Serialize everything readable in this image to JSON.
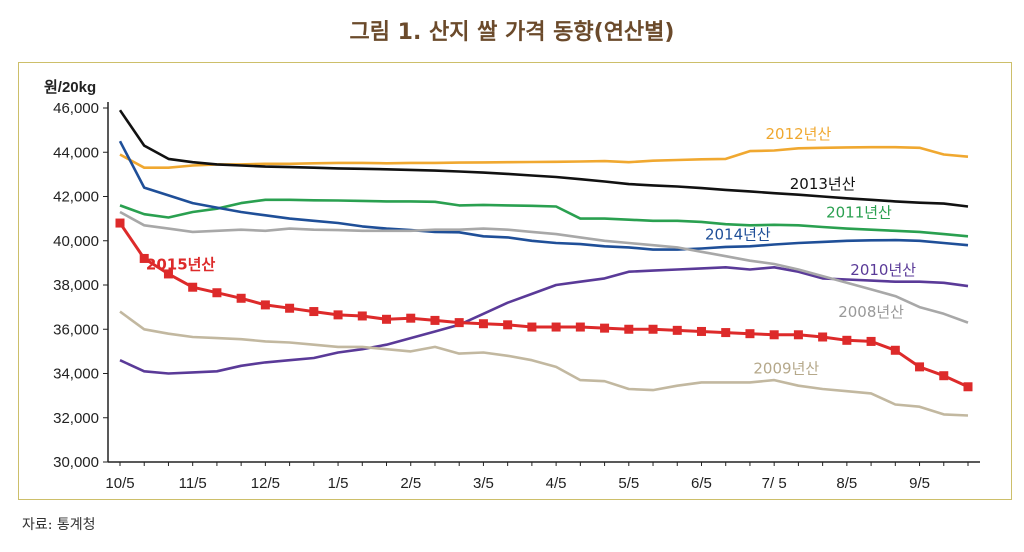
{
  "title": "그림 1. 산지 쌀 가격 동향(연산별)",
  "source": "자료: 통계청",
  "chart_data": {
    "type": "line",
    "title": "그림 1. 산지 쌀 가격 동향(연산별)",
    "ylabel": "원/20kg",
    "ylim": [
      30000,
      46000
    ],
    "yticks": [
      30000,
      32000,
      34000,
      36000,
      38000,
      40000,
      42000,
      44000,
      46000
    ],
    "ytick_labels": [
      "30,000",
      "32,000",
      "34,000",
      "36,000",
      "38,000",
      "40,000",
      "42,000",
      "44,000",
      "46,000"
    ],
    "categories": [
      "10/5",
      "11/5",
      "12/5",
      "1/5",
      "2/5",
      "3/5",
      "4/5",
      "5/5",
      "6/5",
      "7/ 5",
      "8/5",
      "9/5"
    ],
    "x_label_positions": [
      0,
      3,
      6,
      9,
      12,
      15,
      18,
      21,
      24,
      27,
      30,
      33
    ],
    "x": [
      0,
      1,
      2,
      3,
      4,
      5,
      6,
      7,
      8,
      9,
      10,
      11,
      12,
      13,
      14,
      15,
      16,
      17,
      18,
      19,
      20,
      21,
      22,
      23,
      24,
      25,
      26,
      27,
      28,
      29,
      30,
      31,
      32,
      33,
      34,
      35
    ],
    "grid": false,
    "series": [
      {
        "name": "2012년산",
        "color": "#f0a830",
        "marker": "none",
        "values": [
          43900,
          43300,
          43300,
          43400,
          43450,
          43450,
          43480,
          43480,
          43500,
          43520,
          43520,
          43500,
          43520,
          43520,
          43530,
          43540,
          43550,
          43560,
          43570,
          43580,
          43600,
          43550,
          43620,
          43650,
          43680,
          43700,
          44050,
          44080,
          44180,
          44200,
          44220,
          44230,
          44230,
          44200,
          43900,
          43800
        ]
      },
      {
        "name": "2013년산",
        "color": "#111111",
        "marker": "none",
        "values": [
          45900,
          44300,
          43700,
          43550,
          43450,
          43400,
          43350,
          43330,
          43300,
          43270,
          43250,
          43230,
          43200,
          43170,
          43130,
          43080,
          43020,
          42950,
          42880,
          42780,
          42680,
          42560,
          42500,
          42450,
          42380,
          42300,
          42230,
          42150,
          42080,
          42000,
          41920,
          41850,
          41780,
          41720,
          41680,
          41550
        ]
      },
      {
        "name": "2011년산",
        "color": "#2aa050",
        "marker": "none",
        "values": [
          41600,
          41200,
          41050,
          41300,
          41450,
          41700,
          41850,
          41850,
          41830,
          41820,
          41800,
          41780,
          41780,
          41760,
          41600,
          41620,
          41600,
          41580,
          41550,
          41000,
          41000,
          40950,
          40900,
          40900,
          40850,
          40750,
          40700,
          40720,
          40700,
          40620,
          40550,
          40500,
          40450,
          40400,
          40300,
          40200
        ]
      },
      {
        "name": "2014년산",
        "color": "#1f4f98",
        "marker": "none",
        "values": [
          44500,
          42400,
          42050,
          41700,
          41500,
          41300,
          41150,
          41000,
          40900,
          40800,
          40650,
          40550,
          40480,
          40400,
          40380,
          40200,
          40150,
          40000,
          39900,
          39850,
          39750,
          39700,
          39600,
          39600,
          39650,
          39720,
          39750,
          39830,
          39900,
          39950,
          40000,
          40020,
          40030,
          40000,
          39900,
          39800
        ]
      },
      {
        "name": "2010년산",
        "color": "#5a3a98",
        "marker": "none",
        "values": [
          34600,
          34100,
          34000,
          34050,
          34100,
          34350,
          34500,
          34600,
          34700,
          34950,
          35100,
          35300,
          35600,
          35900,
          36200,
          36700,
          37200,
          37600,
          38000,
          38150,
          38300,
          38600,
          38650,
          38700,
          38750,
          38800,
          38700,
          38800,
          38600,
          38300,
          38250,
          38200,
          38150,
          38150,
          38100,
          37950
        ]
      },
      {
        "name": "2008년산",
        "color": "#a8a8a8",
        "marker": "none",
        "values": [
          41300,
          40700,
          40550,
          40400,
          40450,
          40500,
          40450,
          40550,
          40500,
          40480,
          40450,
          40450,
          40450,
          40500,
          40500,
          40550,
          40500,
          40400,
          40300,
          40150,
          40000,
          39900,
          39800,
          39700,
          39500,
          39300,
          39100,
          38950,
          38700,
          38400,
          38100,
          37800,
          37500,
          37000,
          36700,
          36300
        ]
      },
      {
        "name": "2009년산",
        "color": "#c2b8a0",
        "marker": "none",
        "values": [
          36800,
          36000,
          35800,
          35650,
          35600,
          35550,
          35450,
          35400,
          35300,
          35200,
          35200,
          35100,
          35000,
          35200,
          34900,
          34950,
          34800,
          34600,
          34300,
          33700,
          33650,
          33300,
          33250,
          33450,
          33600,
          33600,
          33600,
          33700,
          33450,
          33300,
          33200,
          33100,
          32600,
          32500,
          32150,
          32100
        ]
      },
      {
        "name": "2015년산",
        "color": "#dd2a2a",
        "marker": "square",
        "values": [
          40800,
          39200,
          38500,
          37900,
          37650,
          37400,
          37100,
          36950,
          36800,
          36650,
          36600,
          36450,
          36500,
          36400,
          36300,
          36250,
          36200,
          36100,
          36100,
          36100,
          36050,
          36000,
          36000,
          35950,
          35900,
          35850,
          35800,
          35750,
          35750,
          35650,
          35500,
          35450,
          35050,
          34300,
          33900,
          33400
        ]
      }
    ],
    "series_labels": [
      {
        "series": "2012년산",
        "text": "2012년산",
        "at_x": 28,
        "at_y": 44600
      },
      {
        "series": "2013년산",
        "text": "2013년산",
        "at_x": 29,
        "at_y": 42350
      },
      {
        "series": "2011년산",
        "text": "2011년산",
        "at_x": 30.5,
        "at_y": 41050
      },
      {
        "series": "2014년산",
        "text": "2014년산",
        "at_x": 25.5,
        "at_y": 40050
      },
      {
        "series": "2010년산",
        "text": "2010년산",
        "at_x": 31.5,
        "at_y": 38450
      },
      {
        "series": "2008년산",
        "text": "2008년산",
        "at_x": 31,
        "at_y": 36550
      },
      {
        "series": "2009년산",
        "text": "2009년산",
        "at_x": 27.5,
        "at_y": 34000
      },
      {
        "series": "2015년산",
        "text": "2015년산",
        "at_x": 2.5,
        "at_y": 38700
      }
    ]
  }
}
